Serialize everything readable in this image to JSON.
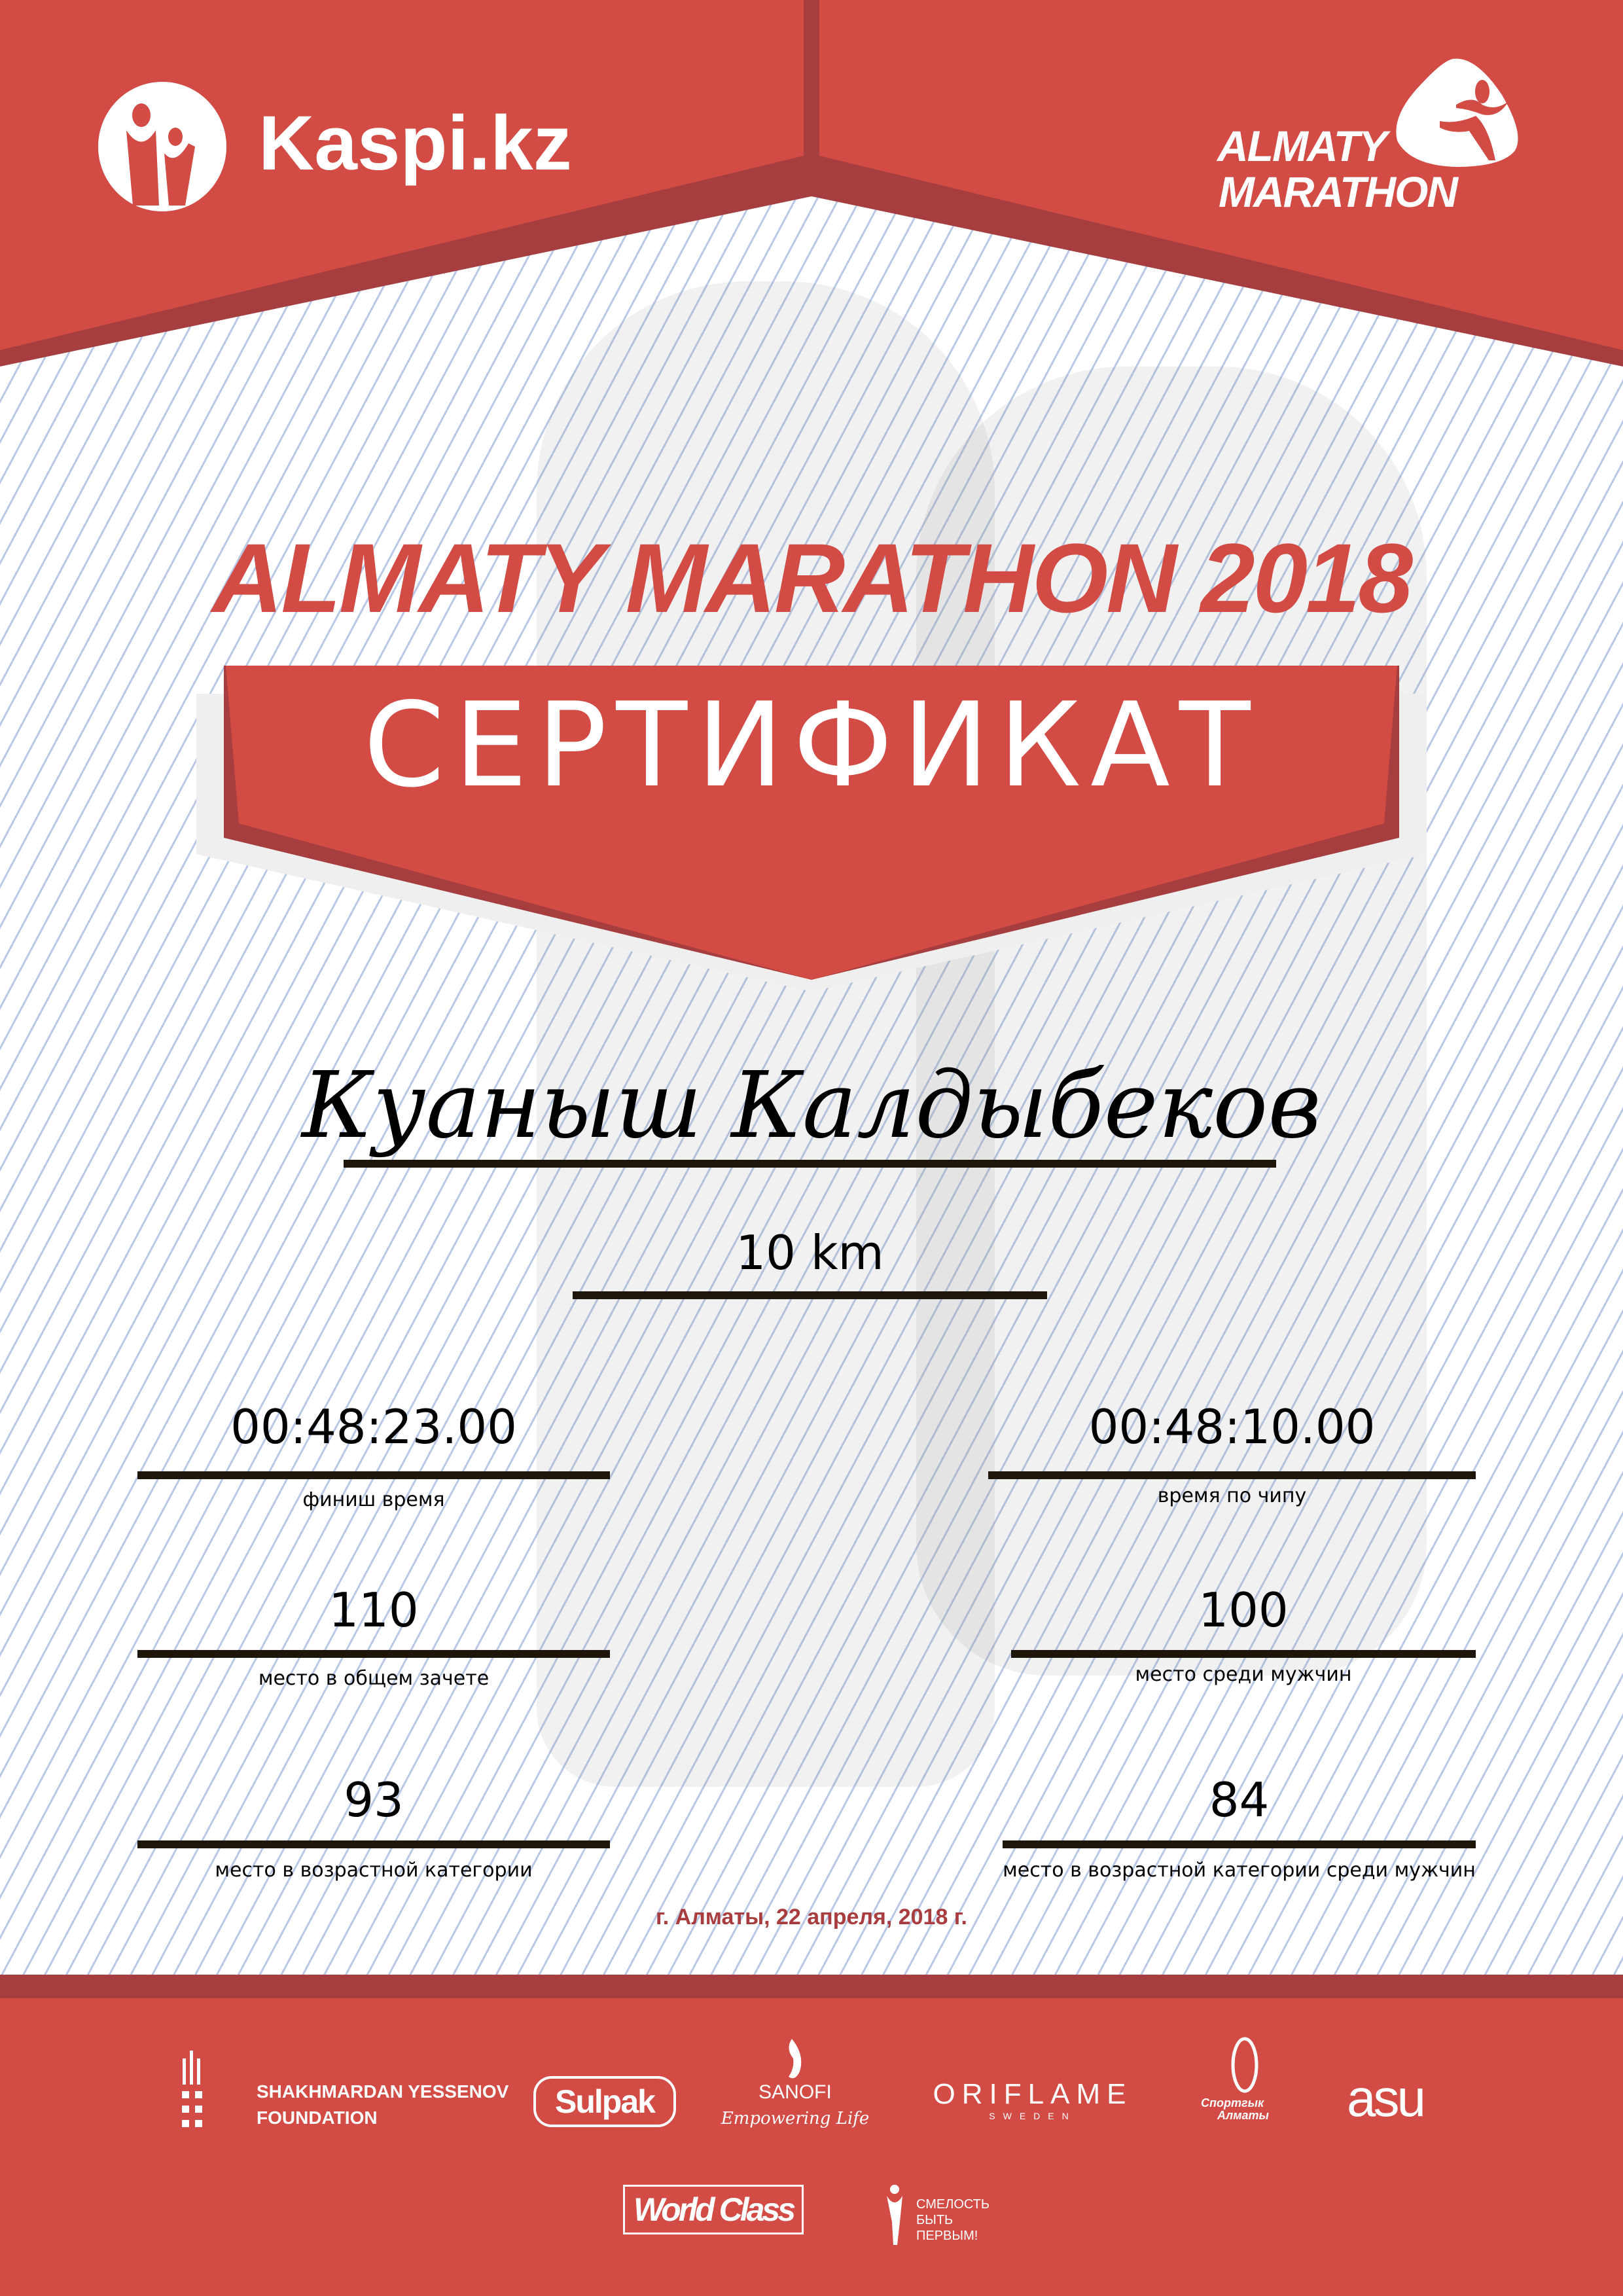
{
  "colors": {
    "red": "#d34b45",
    "dark_red": "#a63e3f",
    "rule": "#1e160a",
    "date": "#a83c3e",
    "background_lines": "#b9c8e6"
  },
  "header": {
    "left_logo": "Kaspi.kz",
    "right_logo_line1": "ALMATY",
    "right_logo_line2": "MARATHON"
  },
  "event_title": "ALMATY MARATHON 2018",
  "certificate_label": "СЕРТИФИКАТ",
  "participant_name": "Куаныш Калдыбеков",
  "distance": "10 km",
  "results": [
    {
      "value": "00:48:23.00",
      "label": "финиш время"
    },
    {
      "value": "00:48:10.00",
      "label": "время по чипу"
    },
    {
      "value": "110",
      "label": "место в общем зачете"
    },
    {
      "value": "100",
      "label": "место среди мужчин"
    },
    {
      "value": "93",
      "label": "место в возрастной категории"
    },
    {
      "value": "84",
      "label": "место в возрастной категории среди мужчин"
    }
  ],
  "date_place": "г. Алматы, 22 апреля, 2018 г.",
  "sponsors": {
    "yessenov_line1": "SHAKHMARDAN YESSENOV",
    "yessenov_line2": "FOUNDATION",
    "sulpak": "Sulpak",
    "sanofi": "SANOFI",
    "sanofi_tagline": "Empowering Life",
    "oriflame": "ORIFLAME",
    "oriflame_sub": "SWEDEN",
    "sport_almaty_line1": "Спортгык",
    "sport_almaty_line2": "Алматы",
    "asu": "asu",
    "worldclass": "World Class",
    "smelost_line1": "СМЕЛОСТЬ",
    "smelost_line2": "БЫТЬ",
    "smelost_line3": "ПЕРВЫМ!"
  }
}
